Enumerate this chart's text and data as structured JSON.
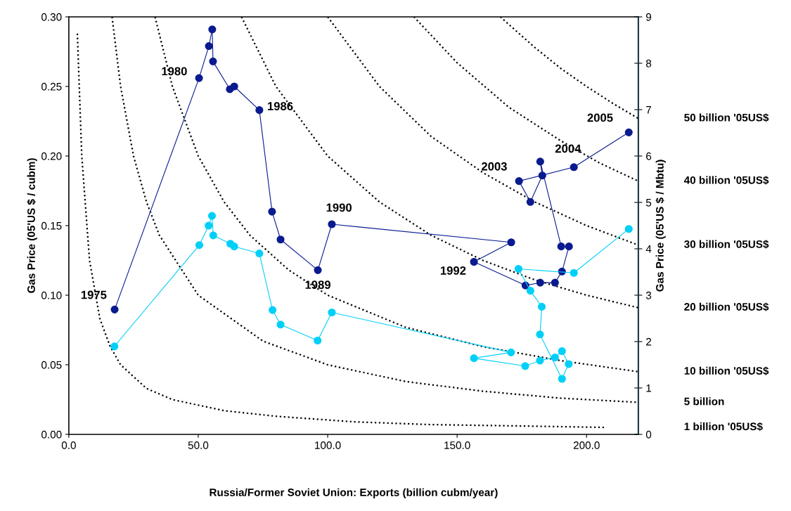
{
  "chart_data": {
    "type": "line",
    "xlabel": "Russia/Former Soviet Union: Exports (billion cubm/year)",
    "ylabel": "Gas Price (05'US $ / cubm)",
    "y2label": "Gas Price (05'US $ / Mbtu)",
    "xlim": [
      0,
      220
    ],
    "xticks": [
      {
        "value": 0,
        "label": "0.0"
      },
      {
        "value": 50,
        "label": "50.0"
      },
      {
        "value": 100,
        "label": "100.0"
      },
      {
        "value": 150,
        "label": "150.0"
      },
      {
        "value": 200,
        "label": "200.0"
      }
    ],
    "ylim": [
      0,
      0.3
    ],
    "yticks": [
      {
        "value": 0,
        "label": "0.00"
      },
      {
        "value": 0.05,
        "label": "0.05"
      },
      {
        "value": 0.1,
        "label": "0.10"
      },
      {
        "value": 0.15,
        "label": "0.15"
      },
      {
        "value": 0.2,
        "label": "0.20"
      },
      {
        "value": 0.25,
        "label": "0.25"
      },
      {
        "value": 0.3,
        "label": "0.30"
      }
    ],
    "y2lim": [
      0,
      9
    ],
    "y2ticks": [
      0,
      1,
      2,
      3,
      4,
      5,
      6,
      7,
      8,
      9
    ],
    "grid": false,
    "legend": false,
    "series": [
      {
        "name": "1 billion '05US$",
        "color": "#000000",
        "marker": "none",
        "line_style": "dotted",
        "x": [
          3.3,
          5,
          8,
          12,
          16,
          20,
          30,
          40,
          60,
          80,
          110,
          140,
          175,
          207
        ],
        "values": [
          0.288,
          0.2,
          0.125,
          0.083,
          0.063,
          0.05,
          0.033,
          0.025,
          0.017,
          0.013,
          0.009,
          0.007,
          0.006,
          0.005
        ]
      },
      {
        "name": "5 billion",
        "color": "#000000",
        "marker": "none",
        "line_style": "dotted",
        "x": [
          16.7,
          20,
          25,
          30,
          35,
          50,
          75,
          100,
          130,
          160,
          190,
          220
        ],
        "values": [
          0.3,
          0.25,
          0.2,
          0.167,
          0.143,
          0.1,
          0.067,
          0.05,
          0.038,
          0.031,
          0.026,
          0.023
        ]
      },
      {
        "name": "10 billion '05US$",
        "color": "#000000",
        "marker": "none",
        "line_style": "dotted",
        "x": [
          33.3,
          40,
          50,
          60,
          70,
          85,
          100,
          130,
          160,
          190,
          220
        ],
        "values": [
          0.3,
          0.25,
          0.2,
          0.167,
          0.143,
          0.118,
          0.1,
          0.077,
          0.063,
          0.053,
          0.045
        ]
      },
      {
        "name": "20 billion '05US$",
        "color": "#000000",
        "marker": "none",
        "line_style": "dotted",
        "x": [
          66.7,
          80,
          100,
          120,
          140,
          160,
          180,
          200,
          220
        ],
        "values": [
          0.3,
          0.25,
          0.2,
          0.167,
          0.143,
          0.125,
          0.111,
          0.1,
          0.091
        ]
      },
      {
        "name": "30 billion '05US$",
        "color": "#000000",
        "marker": "none",
        "line_style": "dotted",
        "x": [
          100,
          120,
          140,
          160,
          180,
          200,
          220
        ],
        "values": [
          0.3,
          0.25,
          0.214,
          0.188,
          0.167,
          0.15,
          0.136
        ]
      },
      {
        "name": "40 billion '05US$",
        "color": "#000000",
        "marker": "none",
        "line_style": "dotted",
        "x": [
          133.3,
          150,
          170,
          190,
          205,
          220
        ],
        "values": [
          0.3,
          0.267,
          0.235,
          0.211,
          0.195,
          0.182
        ]
      },
      {
        "name": "50 billion '05US$",
        "color": "#000000",
        "marker": "none",
        "line_style": "dotted",
        "x": [
          166.7,
          180,
          190,
          200,
          210,
          220
        ],
        "values": [
          0.3,
          0.278,
          0.263,
          0.25,
          0.238,
          0.227
        ]
      },
      {
        "color": "#0a1a8f",
        "marker": "circle",
        "line_style": "solid",
        "x": [
          17.7,
          50.3,
          54.1,
          55.4,
          55.7,
          62.2,
          63.9,
          73.6,
          78.5,
          81.8,
          96.2,
          101.6,
          170.9,
          156.5,
          176.4,
          182.1,
          187.8,
          190.5,
          193.2,
          190.2,
          182.1,
          182.9,
          178.3,
          173.9,
          195.1,
          216.3
        ],
        "values": [
          0.0897,
          0.256,
          0.279,
          0.291,
          0.268,
          0.248,
          0.25,
          0.233,
          0.16,
          0.14,
          0.118,
          0.151,
          0.138,
          0.124,
          0.107,
          0.109,
          0.109,
          0.117,
          0.135,
          0.135,
          0.196,
          0.186,
          0.167,
          0.182,
          0.192,
          0.217
        ]
      },
      {
        "color": "#00d0f8",
        "marker": "circle",
        "line_style": "solid",
        "x": [
          17.6,
          50.4,
          54.0,
          55.3,
          55.8,
          62.4,
          63.9,
          73.6,
          78.7,
          81.8,
          96.1,
          101.6,
          170.8,
          156.5,
          176.3,
          182.0,
          187.8,
          190.5,
          193.1,
          190.5,
          182.0,
          182.7,
          178.3,
          173.7,
          195.1,
          216.3
        ],
        "values": [
          0.0632,
          0.136,
          0.15,
          0.157,
          0.143,
          0.137,
          0.135,
          0.13,
          0.0893,
          0.0789,
          0.0674,
          0.0876,
          0.0589,
          0.0547,
          0.0491,
          0.053,
          0.0552,
          0.0598,
          0.0505,
          0.0399,
          0.0718,
          0.0917,
          0.1032,
          0.1189,
          0.116,
          0.1476
        ]
      }
    ],
    "annotations": [
      {
        "text": "1975",
        "x": 17.7,
        "y": 0.0897
      },
      {
        "text": "1980",
        "x": 50.3,
        "y": 0.256
      },
      {
        "text": "1986",
        "x": 73.6,
        "y": 0.233
      },
      {
        "text": "1989",
        "x": 96.2,
        "y": 0.118
      },
      {
        "text": "1990",
        "x": 101.6,
        "y": 0.151
      },
      {
        "text": "1992",
        "x": 156.5,
        "y": 0.124
      },
      {
        "text": "2003",
        "x": 173.9,
        "y": 0.182
      },
      {
        "text": "2004",
        "x": 195.1,
        "y": 0.192
      },
      {
        "text": "2005",
        "x": 216.3,
        "y": 0.217
      }
    ]
  }
}
